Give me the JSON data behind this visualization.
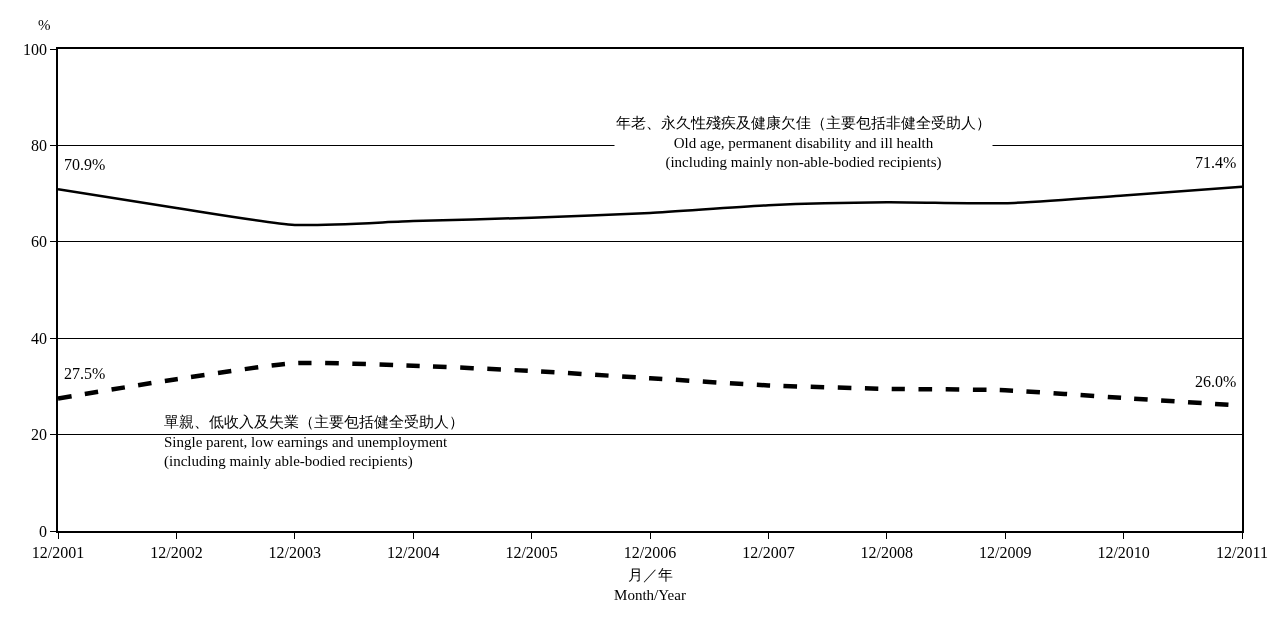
{
  "chart_data": {
    "type": "line",
    "categories": [
      "12/2001",
      "12/2002",
      "12/2003",
      "12/2004",
      "12/2005",
      "12/2006",
      "12/2007",
      "12/2008",
      "12/2009",
      "12/2010",
      "12/2011"
    ],
    "series": [
      {
        "name": "年老、永久性殘疾及健康欠佳（主要包括非健全受助人）\nOld age, permanent disability and ill health\n(including mainly non-able-bodied recipients)",
        "color": "#000000",
        "line_style": "solid",
        "values": [
          70.9,
          67.0,
          63.5,
          64.3,
          65.0,
          66.0,
          67.6,
          68.2,
          68.0,
          69.6,
          71.4
        ],
        "value_labels": [
          "70.9%",
          null,
          null,
          null,
          null,
          null,
          null,
          null,
          null,
          null,
          "71.4%"
        ]
      },
      {
        "name": "單親、低收入及失業（主要包括健全受助人）\nSingle parent, low earnings and unemployment\n(including mainly able-bodied recipients)",
        "color": "#000000",
        "line_style": "dashed",
        "values": [
          27.5,
          31.5,
          34.8,
          34.3,
          33.2,
          31.7,
          30.2,
          29.5,
          29.2,
          27.6,
          26.0
        ],
        "value_labels": [
          "27.5%",
          null,
          null,
          null,
          null,
          null,
          null,
          null,
          null,
          null,
          "26.0%"
        ]
      }
    ],
    "xlabel": "月／年\nMonth/Year",
    "ylabel": "%",
    "ylim": [
      0,
      100
    ],
    "yticks": [
      0,
      20,
      40,
      60,
      80,
      100
    ],
    "grid": "y",
    "legend": false,
    "marker": "none"
  }
}
